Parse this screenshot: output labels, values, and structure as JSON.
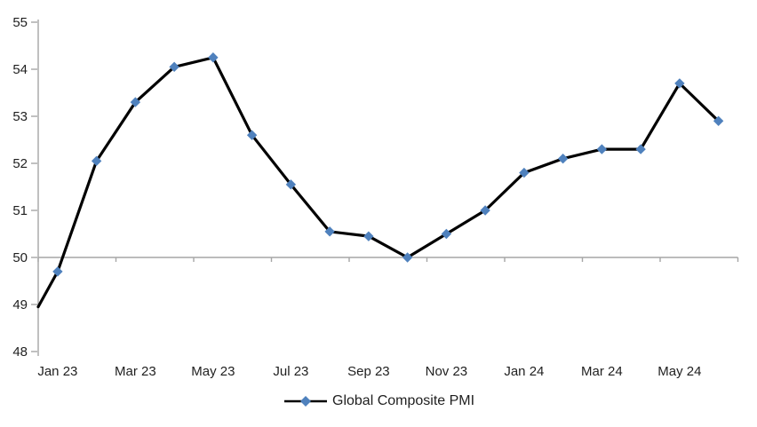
{
  "page": {
    "background_color": "#FFFFFF"
  },
  "chart_data": {
    "type": "line",
    "title": "",
    "xlabel": "",
    "ylabel": "",
    "grid": "off",
    "legend_position": "bottom-center",
    "x_axis_cross_at": 50,
    "ylim": [
      48,
      55
    ],
    "y_ticks": [
      48,
      49,
      50,
      51,
      52,
      53,
      54,
      55
    ],
    "x_tick_labels": [
      "Jan 23",
      "Mar 23",
      "May 23",
      "Jul 23",
      "Sep 23",
      "Nov 23",
      "Jan 24",
      "Mar 24",
      "May 24"
    ],
    "x_tick_label_every": 2,
    "series": [
      {
        "name": "Global Composite PMI",
        "x": [
          "Jan 23",
          "Feb 23",
          "Mar 23",
          "Apr 23",
          "May 23",
          "Jun 23",
          "Jul 23",
          "Aug 23",
          "Sep 23",
          "Oct 23",
          "Nov 23",
          "Dec 23",
          "Jan 24",
          "Feb 24",
          "Mar 24",
          "Apr 24",
          "May 24",
          "Jun 24"
        ],
        "values": [
          49.7,
          52.05,
          53.3,
          54.05,
          54.25,
          52.6,
          51.55,
          50.55,
          50.45,
          50.0,
          50.5,
          51.0,
          51.8,
          52.1,
          52.3,
          52.3,
          53.7,
          52.9
        ],
        "clipped_leadin_value_at_left_axis": 48.95,
        "line_color": "#000000",
        "marker": "diamond",
        "marker_color": "#4F81BD"
      }
    ],
    "axis_color": "#A6A6A6",
    "text_color": "#1F1F1F"
  }
}
